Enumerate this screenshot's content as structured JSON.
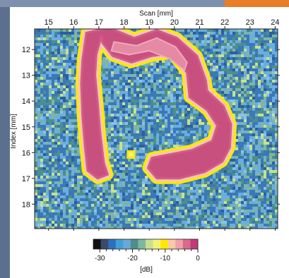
{
  "frame": {
    "side_color": "#5c6f8f",
    "accent_color": "#e87d2a",
    "band_color": "#7f8fae"
  },
  "chart_data": {
    "type": "heatmap",
    "title": "",
    "xlabel": "Scan [mm]",
    "ylabel": "Index [mm]",
    "x_ticks": [
      15,
      16,
      17,
      18,
      19,
      20,
      21,
      22,
      23,
      24
    ],
    "y_ticks": [
      12,
      13,
      14,
      15,
      16,
      17,
      18
    ],
    "xlim": [
      14.45,
      24.1
    ],
    "ylim": [
      11.2,
      18.95
    ],
    "grid": false,
    "colorbar": {
      "label": "[dB]",
      "ticks": [
        -30,
        -20,
        -10,
        0
      ],
      "range": [
        -32,
        0
      ],
      "colors": [
        "#111111",
        "#3a4a6a",
        "#2b6fbf",
        "#3fa0d8",
        "#6aa8d8",
        "#4d8f8a",
        "#7fb6a0",
        "#c8e08f",
        "#f2f27a",
        "#ffe800",
        "#f8c8a8",
        "#f0a0a8",
        "#d86a8a",
        "#c23a78"
      ]
    },
    "defect_outline_mm": [
      [
        17.1,
        11.5
      ],
      [
        16.9,
        12.2
      ],
      [
        16.85,
        13.0
      ],
      [
        16.95,
        14.0
      ],
      [
        17.05,
        15.2
      ],
      [
        17.2,
        16.4
      ],
      [
        17.35,
        16.85
      ],
      [
        16.95,
        17.0
      ],
      [
        16.55,
        16.7
      ],
      [
        16.45,
        15.8
      ],
      [
        16.35,
        14.6
      ],
      [
        16.3,
        13.3
      ],
      [
        16.35,
        12.4
      ],
      [
        16.5,
        11.35
      ],
      [
        17.4,
        11.15
      ],
      [
        18.4,
        11.55
      ],
      [
        19.3,
        11.25
      ],
      [
        20.1,
        11.55
      ],
      [
        20.9,
        12.25
      ],
      [
        21.25,
        13.2
      ],
      [
        21.3,
        13.6
      ],
      [
        21.95,
        14.2
      ],
      [
        22.25,
        14.9
      ],
      [
        22.2,
        15.8
      ],
      [
        21.9,
        16.35
      ],
      [
        21.2,
        16.75
      ],
      [
        20.2,
        17.0
      ],
      [
        19.3,
        17.0
      ],
      [
        18.95,
        16.6
      ],
      [
        19.1,
        16.2
      ],
      [
        19.9,
        16.05
      ],
      [
        20.7,
        15.9
      ],
      [
        21.5,
        15.55
      ],
      [
        21.7,
        14.95
      ],
      [
        21.3,
        14.35
      ],
      [
        20.6,
        13.85
      ],
      [
        20.5,
        12.9
      ],
      [
        19.9,
        12.15
      ],
      [
        19.1,
        12.25
      ],
      [
        18.3,
        12.5
      ],
      [
        17.55,
        12.25
      ],
      [
        17.15,
        11.75
      ]
    ],
    "inner_blob_mm": [
      [
        17.6,
        11.7
      ],
      [
        18.5,
        11.85
      ],
      [
        19.3,
        11.55
      ],
      [
        20.05,
        11.9
      ],
      [
        20.5,
        12.5
      ],
      [
        20.4,
        12.8
      ],
      [
        19.8,
        12.35
      ],
      [
        19.0,
        12.05
      ],
      [
        18.2,
        12.2
      ],
      [
        17.5,
        12.05
      ]
    ],
    "small_spot_mm": [
      [
        18.15,
        15.95
      ],
      [
        18.4,
        15.95
      ],
      [
        18.4,
        16.2
      ],
      [
        18.15,
        16.2
      ]
    ]
  }
}
